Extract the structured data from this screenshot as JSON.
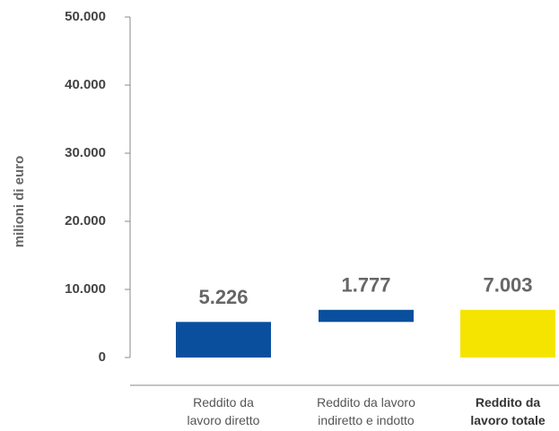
{
  "chart_data": {
    "type": "waterfall",
    "y_label": "milioni di euro",
    "categories": [
      "Reddito da\nlavoro diretto",
      "Reddito da lavoro\nindiretto e indotto",
      "Reddito da\nlavoro totale"
    ],
    "values": [
      5226,
      1777,
      7003
    ],
    "value_labels": [
      "5.226",
      "1.777",
      "7.003"
    ],
    "measure": [
      "absolute",
      "relative",
      "total"
    ],
    "colors": [
      "#0a4f9e",
      "#0a4f9e",
      "#f5e400"
    ],
    "ylim": [
      0,
      50000
    ],
    "yticks": [
      0,
      {
        "value": 10000,
        "label": "10.000"
      },
      {
        "value": 20000,
        "label": "20.000"
      },
      {
        "value": 30000,
        "label": "30.000"
      },
      {
        "value": 40000,
        "label": "40.000"
      },
      {
        "value": 50000,
        "label": "50.000"
      }
    ]
  }
}
